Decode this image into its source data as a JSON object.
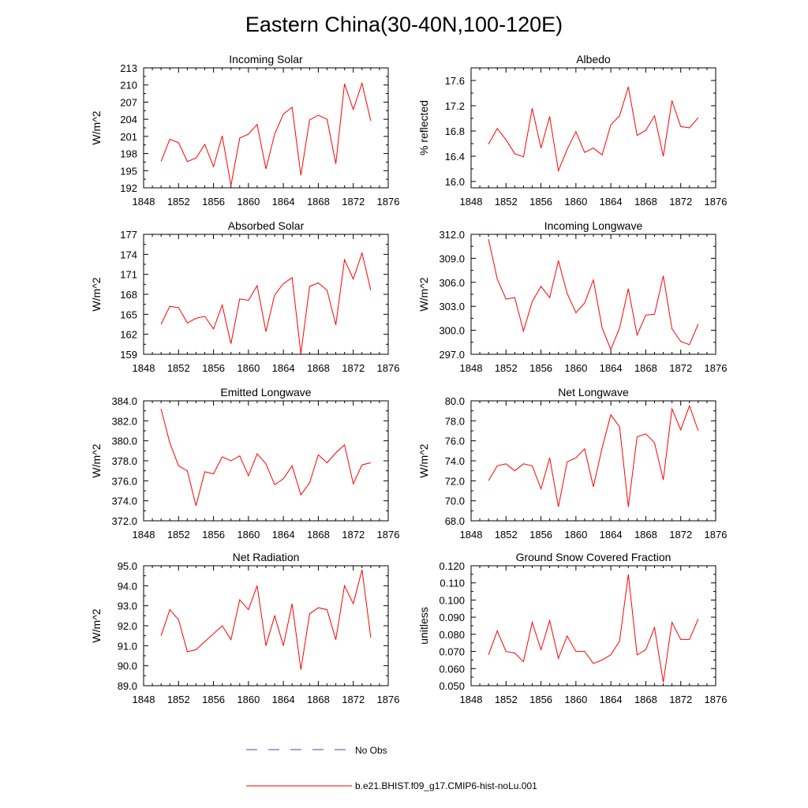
{
  "figure": {
    "title": "Eastern China(30-40N,100-120E)"
  },
  "legend": {
    "position": "bottom-center",
    "items": [
      {
        "label": "No Obs",
        "style": "dashed",
        "color": "#4a4aa8"
      },
      {
        "label": "b.e21.BHIST.f09_g17.CMIP6-hist-noLu.001",
        "style": "solid",
        "color": "#ff0000"
      }
    ]
  },
  "chart_data": [
    {
      "type": "line",
      "title": "Incoming Solar",
      "ylabel": "W/m^2",
      "xlim": [
        1848,
        1876
      ],
      "ylim": [
        192,
        213
      ],
      "xticks": [
        "1848",
        "1852",
        "1856",
        "1860",
        "1864",
        "1868",
        "1872",
        "1876"
      ],
      "yticks": [
        "192",
        "195",
        "198",
        "201",
        "204",
        "207",
        "210",
        "213"
      ],
      "series": [
        {
          "color": "#ff0000",
          "x": [
            1850,
            1851,
            1852,
            1853,
            1854,
            1855,
            1856,
            1857,
            1858,
            1859,
            1860,
            1861,
            1862,
            1863,
            1864,
            1865,
            1866,
            1867,
            1868,
            1869,
            1870,
            1871,
            1872,
            1873,
            1874
          ],
          "y": [
            196.6,
            200.5,
            199.9,
            196.6,
            197.2,
            199.6,
            195.7,
            201.1,
            192.4,
            200.7,
            201.4,
            203.1,
            195.3,
            201.4,
            204.9,
            206.1,
            194.2,
            203.9,
            204.7,
            204.0,
            196.2,
            210.2,
            205.7,
            210.3,
            203.7
          ]
        }
      ]
    },
    {
      "type": "line",
      "title": "Albedo",
      "ylabel": "% reflected",
      "xlim": [
        1848,
        1876
      ],
      "ylim": [
        15.9,
        17.8
      ],
      "xticks": [
        "1848",
        "1852",
        "1856",
        "1860",
        "1864",
        "1868",
        "1872",
        "1876"
      ],
      "yticks": [
        "16.0",
        "16.4",
        "16.8",
        "17.2",
        "17.6"
      ],
      "series": [
        {
          "color": "#ff0000",
          "x": [
            1850,
            1851,
            1852,
            1853,
            1854,
            1855,
            1856,
            1857,
            1858,
            1859,
            1860,
            1861,
            1862,
            1863,
            1864,
            1865,
            1866,
            1867,
            1868,
            1869,
            1870,
            1871,
            1872,
            1873,
            1874
          ],
          "y": [
            16.59,
            16.84,
            16.66,
            16.44,
            16.39,
            17.16,
            16.53,
            17.03,
            16.17,
            16.51,
            16.79,
            16.46,
            16.53,
            16.42,
            16.9,
            17.04,
            17.5,
            16.73,
            16.81,
            17.04,
            16.4,
            17.28,
            16.87,
            16.85,
            17.01
          ]
        }
      ]
    },
    {
      "type": "line",
      "title": "Absorbed Solar",
      "ylabel": "W/m^2",
      "xlim": [
        1848,
        1876
      ],
      "ylim": [
        159,
        177
      ],
      "xticks": [
        "1848",
        "1852",
        "1856",
        "1860",
        "1864",
        "1868",
        "1872",
        "1876"
      ],
      "yticks": [
        "159",
        "162",
        "165",
        "168",
        "171",
        "174",
        "177"
      ],
      "series": [
        {
          "color": "#ff0000",
          "x": [
            1850,
            1851,
            1852,
            1853,
            1854,
            1855,
            1856,
            1857,
            1858,
            1859,
            1860,
            1861,
            1862,
            1863,
            1864,
            1865,
            1866,
            1867,
            1868,
            1869,
            1870,
            1871,
            1872,
            1873,
            1874
          ],
          "y": [
            163.5,
            166.2,
            166.0,
            163.7,
            164.4,
            164.7,
            162.8,
            166.4,
            160.6,
            167.3,
            167.1,
            169.3,
            162.4,
            167.9,
            169.6,
            170.5,
            159.1,
            169.2,
            169.7,
            168.6,
            163.4,
            173.2,
            170.3,
            174.2,
            168.6
          ]
        }
      ]
    },
    {
      "type": "line",
      "title": "Incoming Longwave",
      "ylabel": "W/m^2",
      "xlim": [
        1848,
        1876
      ],
      "ylim": [
        297,
        312
      ],
      "xticks": [
        "1848",
        "1852",
        "1856",
        "1860",
        "1864",
        "1868",
        "1872",
        "1876"
      ],
      "yticks": [
        "297.0",
        "300.0",
        "303.0",
        "306.0",
        "309.0",
        "312.0"
      ],
      "series": [
        {
          "color": "#ff0000",
          "x": [
            1850,
            1851,
            1852,
            1853,
            1854,
            1855,
            1856,
            1857,
            1858,
            1859,
            1860,
            1861,
            1862,
            1863,
            1864,
            1865,
            1866,
            1867,
            1868,
            1869,
            1870,
            1871,
            1872,
            1873,
            1874
          ],
          "y": [
            311.4,
            306.4,
            303.9,
            304.1,
            299.9,
            303.6,
            305.5,
            304.1,
            308.7,
            304.6,
            302.2,
            303.4,
            306.3,
            300.3,
            297.6,
            300.3,
            305.2,
            299.4,
            301.9,
            302.0,
            306.8,
            300.2,
            298.6,
            298.2,
            300.8
          ]
        }
      ]
    },
    {
      "type": "line",
      "title": "Emitted Longwave",
      "ylabel": "W/m^2",
      "xlim": [
        1848,
        1876
      ],
      "ylim": [
        372,
        384
      ],
      "xticks": [
        "1848",
        "1852",
        "1856",
        "1860",
        "1864",
        "1868",
        "1872",
        "1876"
      ],
      "yticks": [
        "372.0",
        "374.0",
        "376.0",
        "378.0",
        "380.0",
        "382.0",
        "384.0"
      ],
      "series": [
        {
          "color": "#ff0000",
          "x": [
            1850,
            1851,
            1852,
            1853,
            1854,
            1855,
            1856,
            1857,
            1858,
            1859,
            1860,
            1861,
            1862,
            1863,
            1864,
            1865,
            1866,
            1867,
            1868,
            1869,
            1870,
            1871,
            1872,
            1873,
            1874
          ],
          "y": [
            383.2,
            379.8,
            377.5,
            377.0,
            373.5,
            376.9,
            376.7,
            378.4,
            378.0,
            378.5,
            376.5,
            378.7,
            377.7,
            375.6,
            376.2,
            377.5,
            374.6,
            375.8,
            378.6,
            377.8,
            378.8,
            379.6,
            375.7,
            377.6,
            377.8
          ]
        }
      ]
    },
    {
      "type": "line",
      "title": "Net Longwave",
      "ylabel": "W/m^2",
      "xlim": [
        1848,
        1876
      ],
      "ylim": [
        68,
        80
      ],
      "xticks": [
        "1848",
        "1852",
        "1856",
        "1860",
        "1864",
        "1868",
        "1872",
        "1876"
      ],
      "yticks": [
        "68.0",
        "70.0",
        "72.0",
        "74.0",
        "76.0",
        "78.0",
        "80.0"
      ],
      "series": [
        {
          "color": "#ff0000",
          "x": [
            1850,
            1851,
            1852,
            1853,
            1854,
            1855,
            1856,
            1857,
            1858,
            1859,
            1860,
            1861,
            1862,
            1863,
            1864,
            1865,
            1866,
            1867,
            1868,
            1869,
            1870,
            1871,
            1872,
            1873,
            1874
          ],
          "y": [
            72.0,
            73.5,
            73.7,
            73.0,
            73.7,
            73.5,
            71.2,
            74.3,
            69.4,
            73.9,
            74.3,
            75.2,
            71.4,
            75.3,
            78.6,
            77.4,
            69.4,
            76.4,
            76.7,
            75.8,
            72.1,
            79.2,
            77.1,
            79.5,
            77.0
          ]
        }
      ]
    },
    {
      "type": "line",
      "title": "Net Radiation",
      "ylabel": "W/m^2",
      "xlim": [
        1848,
        1876
      ],
      "ylim": [
        89,
        95
      ],
      "xticks": [
        "1848",
        "1852",
        "1856",
        "1860",
        "1864",
        "1868",
        "1872",
        "1876"
      ],
      "yticks": [
        "89.0",
        "90.0",
        "91.0",
        "92.0",
        "93.0",
        "94.0",
        "95.0"
      ],
      "series": [
        {
          "color": "#ff0000",
          "x": [
            1850,
            1851,
            1852,
            1853,
            1854,
            1855,
            1856,
            1857,
            1858,
            1859,
            1860,
            1861,
            1862,
            1863,
            1864,
            1865,
            1866,
            1867,
            1868,
            1869,
            1870,
            1871,
            1872,
            1873,
            1874
          ],
          "y": [
            91.5,
            92.8,
            92.3,
            90.7,
            90.8,
            91.2,
            91.6,
            92.0,
            91.3,
            93.3,
            92.8,
            94.0,
            91.0,
            92.5,
            91.0,
            93.1,
            89.8,
            92.6,
            92.9,
            92.8,
            91.3,
            94.0,
            93.1,
            94.8,
            91.4
          ]
        }
      ]
    },
    {
      "type": "line",
      "title": "Ground Snow Covered Fraction",
      "ylabel": "unitless",
      "xlim": [
        1848,
        1876
      ],
      "ylim": [
        0.05,
        0.12
      ],
      "xticks": [
        "1848",
        "1852",
        "1856",
        "1860",
        "1864",
        "1868",
        "1872",
        "1876"
      ],
      "yticks": [
        "0.050",
        "0.060",
        "0.070",
        "0.080",
        "0.090",
        "0.100",
        "0.110",
        "0.120"
      ],
      "series": [
        {
          "color": "#ff0000",
          "x": [
            1850,
            1851,
            1852,
            1853,
            1854,
            1855,
            1856,
            1857,
            1858,
            1859,
            1860,
            1861,
            1862,
            1863,
            1864,
            1865,
            1866,
            1867,
            1868,
            1869,
            1870,
            1871,
            1872,
            1873,
            1874
          ],
          "y": [
            0.068,
            0.082,
            0.07,
            0.069,
            0.064,
            0.087,
            0.071,
            0.088,
            0.066,
            0.079,
            0.07,
            0.07,
            0.063,
            0.065,
            0.068,
            0.076,
            0.115,
            0.068,
            0.071,
            0.084,
            0.052,
            0.087,
            0.077,
            0.077,
            0.089
          ]
        }
      ]
    }
  ]
}
